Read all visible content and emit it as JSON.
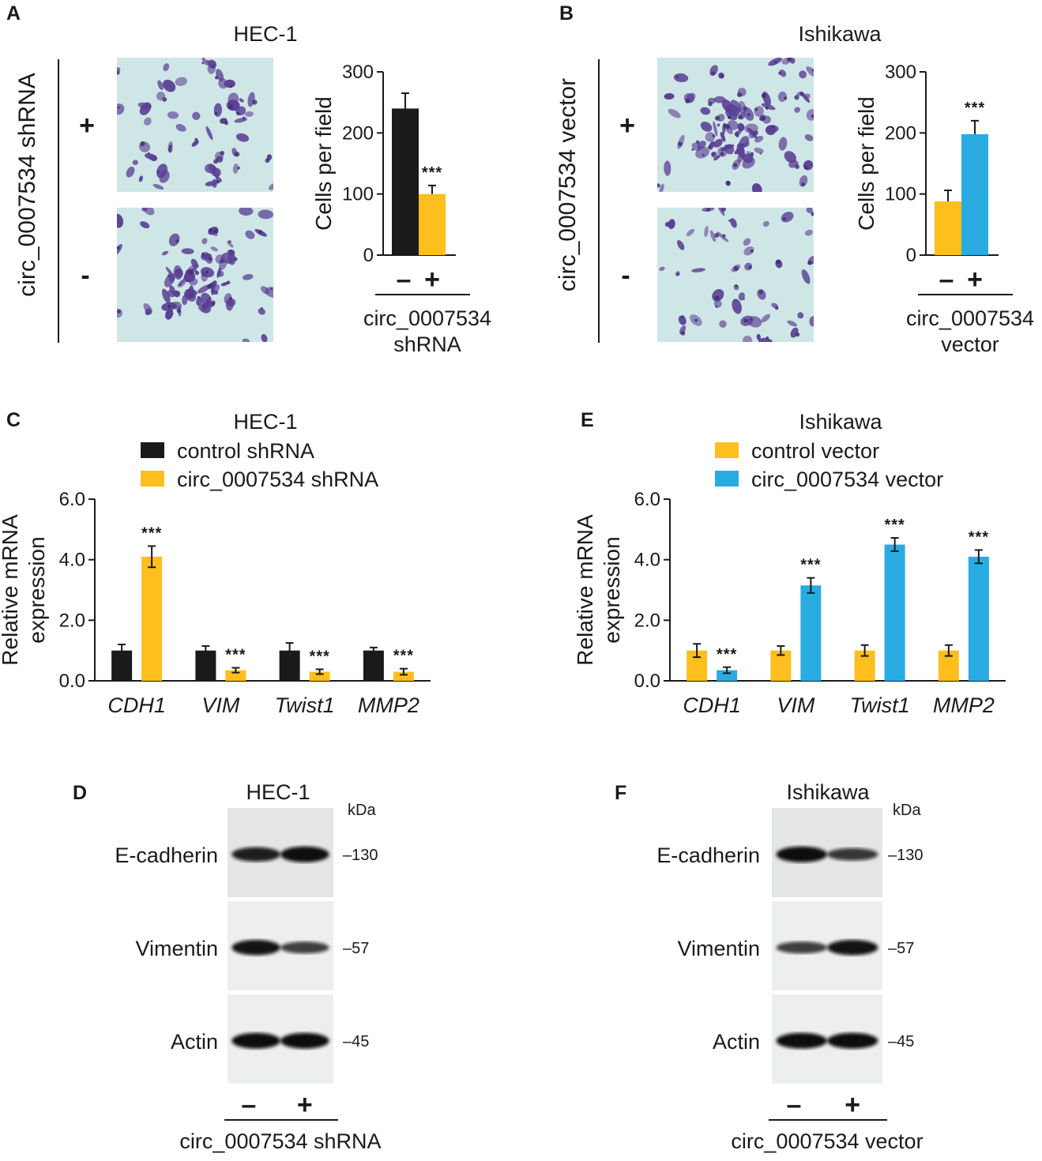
{
  "colors": {
    "black": "#1a1a1a",
    "yellow": "#fdbf1e",
    "blue": "#29abe2",
    "micro_bg": "#cfe6e6",
    "cell": "#5a3f94"
  },
  "panelA": {
    "letter": "A",
    "title": "HEC-1",
    "condition": "circ_0007534 shRNA",
    "row_plus": "+",
    "row_minus": "-",
    "chart_data": {
      "type": "bar",
      "ylabel": "Cells per field",
      "ylim": [
        0,
        300
      ],
      "yticks": [
        0,
        100,
        200,
        300
      ],
      "categories": [
        "–",
        "+"
      ],
      "values": [
        240,
        100
      ],
      "errors": [
        25,
        14
      ],
      "colors": [
        "#1a1a1a",
        "#fdbf1e"
      ],
      "significance": [
        "",
        "***"
      ],
      "xgroup_label": [
        "circ_0007534",
        "shRNA"
      ]
    }
  },
  "panelB": {
    "letter": "B",
    "title": "Ishikawa",
    "condition": "circ_0007534 vector",
    "row_plus": "+",
    "row_minus": "-",
    "chart_data": {
      "type": "bar",
      "ylabel": "Cells per field",
      "ylim": [
        0,
        300
      ],
      "yticks": [
        0,
        100,
        200,
        300
      ],
      "categories": [
        "–",
        "+"
      ],
      "values": [
        88,
        198
      ],
      "errors": [
        18,
        22
      ],
      "colors": [
        "#fdbf1e",
        "#29abe2"
      ],
      "significance": [
        "",
        "***"
      ],
      "xgroup_label": [
        "circ_0007534",
        "vector"
      ]
    }
  },
  "panelC": {
    "letter": "C",
    "title": "HEC-1",
    "chart_data": {
      "type": "bar",
      "ylabel": [
        "Relative mRNA",
        "expression"
      ],
      "ylim": [
        0,
        6.0
      ],
      "yticks": [
        "0.0",
        "2.0",
        "4.0",
        "6.0"
      ],
      "categories": [
        "CDH1",
        "VIM",
        "Twist1",
        "MMP2"
      ],
      "series": [
        {
          "name": "control shRNA",
          "color": "#1a1a1a",
          "values": [
            1.0,
            1.0,
            1.0,
            1.0
          ],
          "errors": [
            0.2,
            0.15,
            0.25,
            0.1
          ]
        },
        {
          "name": "circ_0007534 shRNA",
          "color": "#fdbf1e",
          "values": [
            4.1,
            0.35,
            0.3,
            0.3
          ],
          "errors": [
            0.35,
            0.08,
            0.08,
            0.1
          ]
        }
      ],
      "significance": [
        "***",
        "***",
        "***",
        "***"
      ]
    }
  },
  "panelE": {
    "letter": "E",
    "title": "Ishikawa",
    "chart_data": {
      "type": "bar",
      "ylabel": [
        "Relative mRNA",
        "expression"
      ],
      "ylim": [
        0,
        6.0
      ],
      "yticks": [
        "0.0",
        "2.0",
        "4.0",
        "6.0"
      ],
      "categories": [
        "CDH1",
        "VIM",
        "Twist1",
        "MMP2"
      ],
      "series": [
        {
          "name": "control vector",
          "color": "#fdbf1e",
          "values": [
            1.0,
            1.0,
            1.0,
            1.0
          ],
          "errors": [
            0.22,
            0.15,
            0.18,
            0.18
          ]
        },
        {
          "name": "circ_0007534 vector",
          "color": "#29abe2",
          "values": [
            0.35,
            3.15,
            4.5,
            4.1
          ],
          "errors": [
            0.1,
            0.25,
            0.22,
            0.22
          ]
        }
      ],
      "significance": [
        "***",
        "***",
        "***",
        "***"
      ]
    }
  },
  "panelD": {
    "letter": "D",
    "title": "HEC-1",
    "kda": "kDa",
    "proteins": [
      "E-cadherin",
      "Vimentin",
      "Actin"
    ],
    "markers": [
      "–130",
      "–57",
      "–45"
    ],
    "lane_labels": [
      "–",
      "+"
    ],
    "xlabel": "circ_0007534 shRNA",
    "band_intensity": [
      [
        0.85,
        1.0
      ],
      [
        0.95,
        0.6
      ],
      [
        1.0,
        1.0
      ]
    ]
  },
  "panelF": {
    "letter": "F",
    "title": "Ishikawa",
    "kda": "kDa",
    "proteins": [
      "E-cadherin",
      "Vimentin",
      "Actin"
    ],
    "markers": [
      "–130",
      "–57",
      "–45"
    ],
    "lane_labels": [
      "–",
      "+"
    ],
    "xlabel": "circ_0007534 vector",
    "band_intensity": [
      [
        1.0,
        0.65
      ],
      [
        0.6,
        0.95
      ],
      [
        1.0,
        1.0
      ]
    ]
  }
}
